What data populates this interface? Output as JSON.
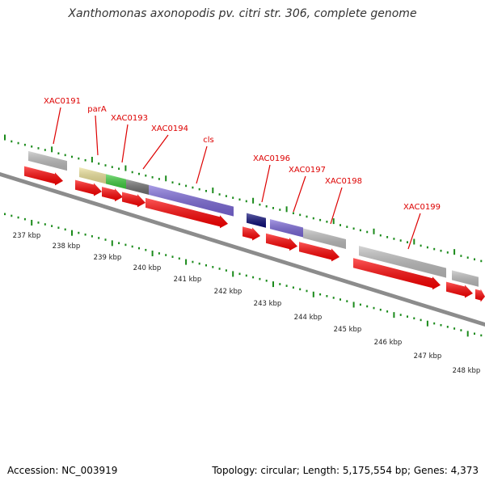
{
  "title": "Xanthomonas axonopodis pv. citri str. 306, complete genome",
  "footer": {
    "accession": "Accession: NC_003919",
    "summary": "Topology: circular; Length: 5,175,554 bp; Genes: 4,373"
  },
  "scale": {
    "labels": [
      "237 kbp",
      "238 kbp",
      "239 kbp",
      "240 kbp",
      "241 kbp",
      "242 kbp",
      "243 kbp",
      "244 kbp",
      "245 kbp",
      "246 kbp",
      "247 kbp",
      "248 kbp"
    ]
  },
  "genes": [
    {
      "name": "XAC0191",
      "color": "#bdbdbd"
    },
    {
      "name": "parA",
      "color": "#eee39a"
    },
    {
      "name": "XAC0193",
      "color": "#3fcf3f"
    },
    {
      "name": "XAC0194",
      "color": "#707070"
    },
    {
      "name": "cls",
      "color": "#7a67d8"
    },
    {
      "name": "",
      "color": "#0b0b78"
    },
    {
      "name": "XAC0196",
      "color": "#7a67d8"
    },
    {
      "name": "XAC0197",
      "color": "#bdbdbd"
    },
    {
      "name": "XAC0198",
      "color": "#bdbdbd"
    },
    {
      "name": "XAC0199",
      "color": "#bdbdbd"
    },
    {
      "name": "",
      "color": "#ff0000"
    }
  ],
  "colors": {
    "label": "#dd0000",
    "cds": "#ff0000",
    "tick": "#1a8a1a",
    "backbone": "#8c8c8c"
  }
}
